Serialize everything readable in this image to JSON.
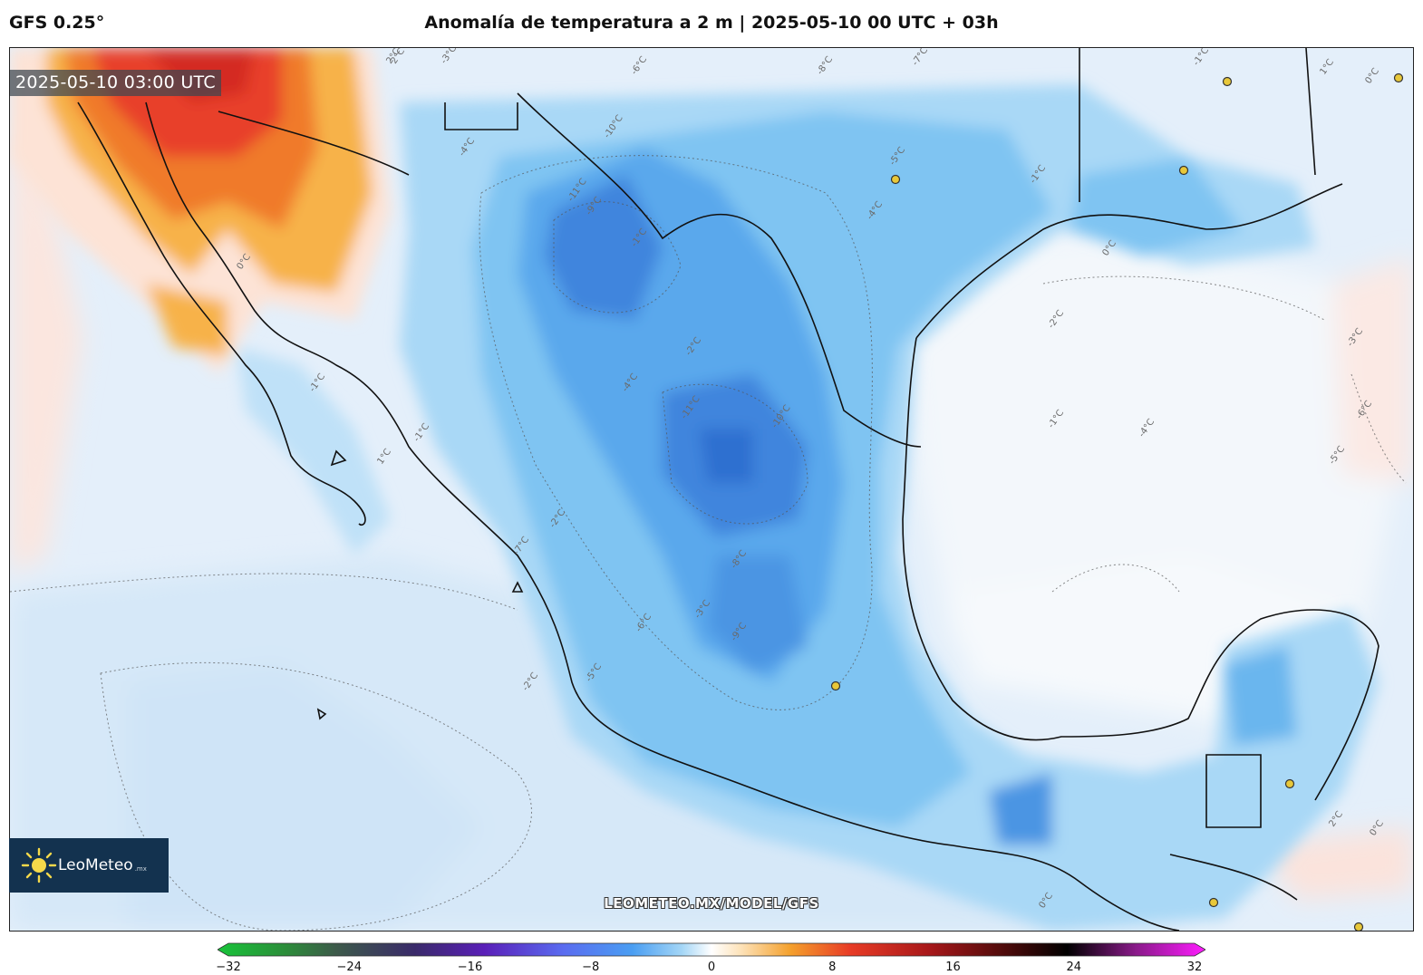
{
  "header": {
    "model": "GFS 0.25°",
    "title": "Anomalía de temperatura a 2 m | 2025-05-10 00 UTC + 03h"
  },
  "map": {
    "valid_time": "2025-05-10 03:00 UTC",
    "watermark": "LEOMETEO.MX/MODEL/GFS",
    "logo": {
      "name": "LeoMeteo",
      "suffix": ".mx"
    },
    "contour_labels": [
      "2°C",
      "-3°C",
      "-4°C",
      "-6°C",
      "-8°C",
      "-7°C",
      "-1°C",
      "1°C",
      "0°C",
      "-5°C",
      "-10°C",
      "-11°C",
      "-9°C",
      "-2°C",
      "-1°C",
      "-1°C",
      "0°C",
      "-2°C",
      "-3°C",
      "-6°C",
      "-5°C",
      "-4°C",
      "-1°C",
      "0°C",
      "-1°C",
      "-1°C",
      "1°C",
      "2°C",
      "0°C",
      "-7°C",
      "-6°C",
      "-5°C",
      "-2°C",
      "-3°C",
      "-8°C",
      "-9°C",
      "-11°C",
      "-10°C",
      "-4°C",
      "-4°C",
      "2°C",
      "-2°C",
      "0°C"
    ],
    "legend_colors": {
      "strong_cold": "#2f6fd0",
      "cold": "#5aa5ec",
      "mild_cold": "#a8d7f6",
      "neutral": "#f4f8fc",
      "warm": "#f7b24a",
      "hot": "#e8402a"
    }
  },
  "colorbar": {
    "ticks": [
      "−32",
      "−24",
      "−16",
      "−8",
      "0",
      "8",
      "16",
      "24",
      "32"
    ],
    "min": -32,
    "max": 32
  }
}
